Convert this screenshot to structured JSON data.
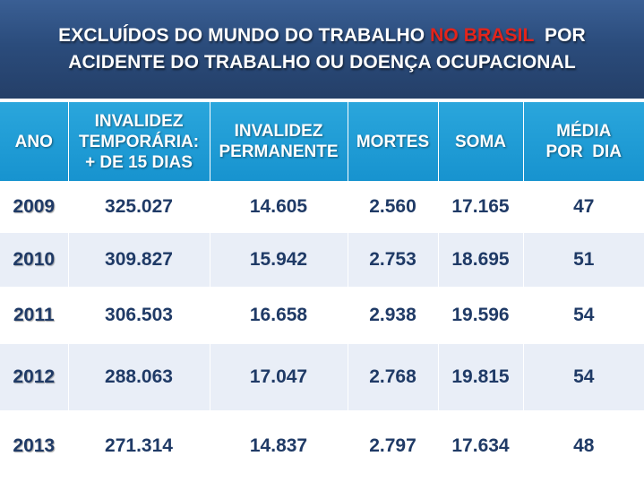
{
  "title": {
    "line1_before": "EXCLUÍDOS DO MUNDO DO TRABALHO ",
    "line1_highlight": "NO BRASIL",
    "line1_after": "  POR",
    "line2": "ACIDENTE DO TRABALHO OU DOENÇA OCUPACIONAL"
  },
  "colors": {
    "title_bg": "#2b4c7c",
    "highlight": "#e3241b",
    "header_bg": "#1c9ad4",
    "band_bg": "#e9eef7",
    "cell_text": "#1f3a66"
  },
  "table": {
    "headers": [
      [
        "ANO"
      ],
      [
        "INVALIDEZ",
        "TEMPORÁRIA:",
        "+ DE 15 DIAS"
      ],
      [
        "INVALIDEZ",
        "PERMANENTE"
      ],
      [
        "MORTES"
      ],
      [
        "SOMA"
      ],
      [
        "MÉDIA",
        "POR  DIA"
      ]
    ],
    "rows": [
      [
        "2009",
        "325.027",
        "14.605",
        "2.560",
        "17.165",
        "47"
      ],
      [
        "2010",
        "309.827",
        "15.942",
        "2.753",
        "18.695",
        "51"
      ],
      [
        "2011",
        "306.503",
        "16.658",
        "2.938",
        "19.596",
        "54"
      ],
      [
        "2012",
        "288.063",
        "17.047",
        "2.768",
        "19.815",
        "54"
      ],
      [
        "2013",
        "271.314",
        "14.837",
        "2.797",
        "17.634",
        "48"
      ]
    ]
  }
}
